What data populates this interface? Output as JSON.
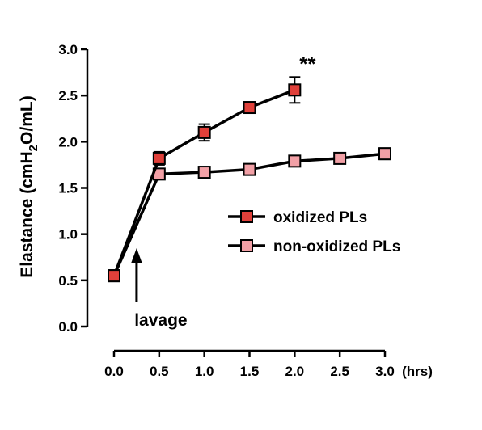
{
  "chart_data": {
    "type": "line",
    "xlabel": "(hrs)",
    "ylabel_parts": [
      "Elastance (cmH",
      "2",
      "O/mL)"
    ],
    "x_ticks": [
      "0.0",
      "0.5",
      "1.0",
      "1.5",
      "2.0",
      "2.5",
      "3.0"
    ],
    "y_ticks": [
      "0.0",
      "0.5",
      "1.0",
      "1.5",
      "2.0",
      "2.5",
      "3.0"
    ],
    "xlim": [
      0,
      3
    ],
    "ylim": [
      0,
      3
    ],
    "grid": false,
    "legend_position": "right",
    "series": [
      {
        "name": "oxidized PLs",
        "color": "#e0403a",
        "x": [
          0.0,
          0.5,
          1.0,
          1.5,
          2.0
        ],
        "y": [
          0.55,
          1.82,
          2.1,
          2.37,
          2.56
        ],
        "err": [
          0.02,
          0.07,
          0.09,
          0.04,
          0.14
        ]
      },
      {
        "name": "non-oxidized PLs",
        "color": "#f2a0a6",
        "x": [
          0.0,
          0.5,
          1.0,
          1.5,
          2.0,
          2.5,
          3.0
        ],
        "y": [
          0.55,
          1.65,
          1.67,
          1.7,
          1.79,
          1.82,
          1.87
        ],
        "err": [
          0.02,
          0.05,
          0.04,
          0.04,
          0.03,
          0.03,
          0.06
        ]
      }
    ],
    "annotations": [
      {
        "text": "lavage",
        "x": 0.25,
        "arrow": true
      },
      {
        "text": "**",
        "x": 2.0,
        "y": 2.85
      }
    ]
  }
}
